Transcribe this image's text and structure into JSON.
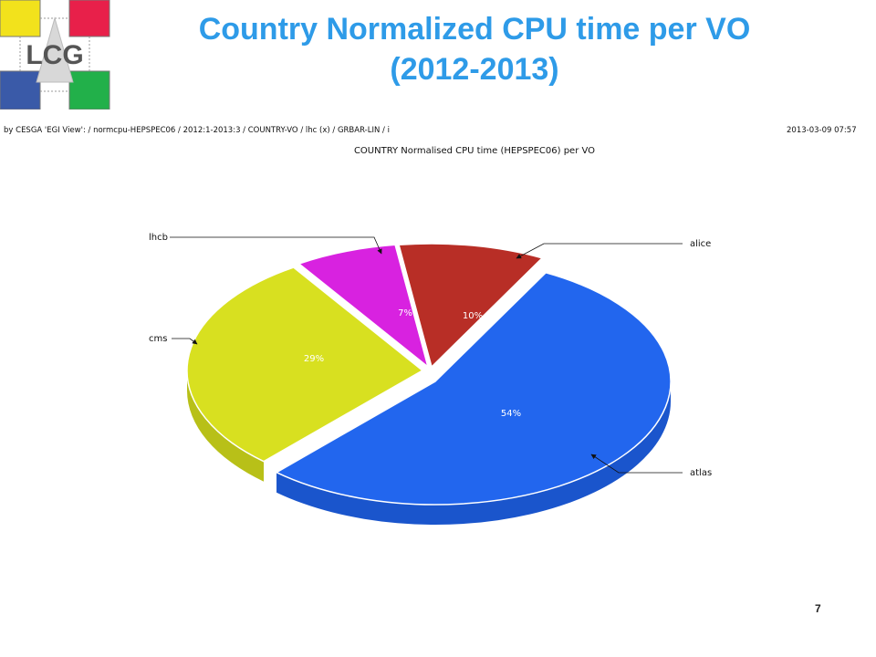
{
  "slide": {
    "title_line1": "Country Normalized CPU time per VO",
    "title_line2": "(2012-2013)",
    "page_number": "7",
    "logo_text": "LCG"
  },
  "header": {
    "left_text": "by CESGA 'EGI View': / normcpu-HEPSPEC06 / 2012:1-2013:3 / COUNTRY-VO / lhc (x) / GRBAR-LIN / i",
    "timestamp": "2013-03-09 07:57"
  },
  "chart_data": {
    "type": "pie",
    "title": "COUNTRY  Normalised CPU time (HEPSPEC06) per VO",
    "slices": [
      {
        "label": "atlas",
        "value": 54,
        "value_label": "54%",
        "color": "#2266ee",
        "side_color": "#1a55cc"
      },
      {
        "label": "cms",
        "value": 29,
        "value_label": "29%",
        "color": "#d8e020",
        "side_color": "#b8c018"
      },
      {
        "label": "lhcb",
        "value": 7,
        "value_label": "7%",
        "color": "#d822e0",
        "side_color": "#b010b8"
      },
      {
        "label": "alice",
        "value": 10,
        "value_label": "10%",
        "color": "#b82e26",
        "side_color": "#8e1f18"
      }
    ]
  },
  "colors": {
    "title": "#2e9be8",
    "logo_yellow": "#f2e21c",
    "logo_red": "#e8204a",
    "logo_blue": "#3a5aa8",
    "logo_green": "#22b04a"
  }
}
